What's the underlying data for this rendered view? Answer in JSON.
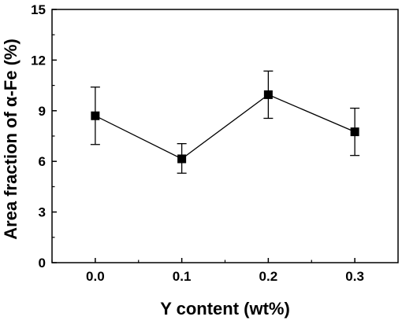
{
  "chart_data": {
    "type": "line",
    "title": "",
    "xlabel": "Y content (wt%)",
    "ylabel": "Area  fraction of α-Fe (%)",
    "xlim": [
      -0.05,
      0.35
    ],
    "ylim": [
      0,
      15
    ],
    "x_ticks": [
      "0.0",
      "0.1",
      "0.2",
      "0.3"
    ],
    "y_ticks": [
      "0",
      "3",
      "6",
      "9",
      "12",
      "15"
    ],
    "grid": false,
    "legend": "none",
    "series": [
      {
        "x": [
          0.0,
          0.1,
          0.2,
          0.3
        ],
        "y": [
          8.7,
          6.15,
          9.95,
          7.75
        ],
        "error_upper": [
          10.4,
          7.05,
          11.35,
          9.15
        ],
        "error_lower": [
          7.0,
          5.3,
          8.55,
          6.35
        ],
        "marker": "square",
        "color": "#000000"
      }
    ]
  }
}
